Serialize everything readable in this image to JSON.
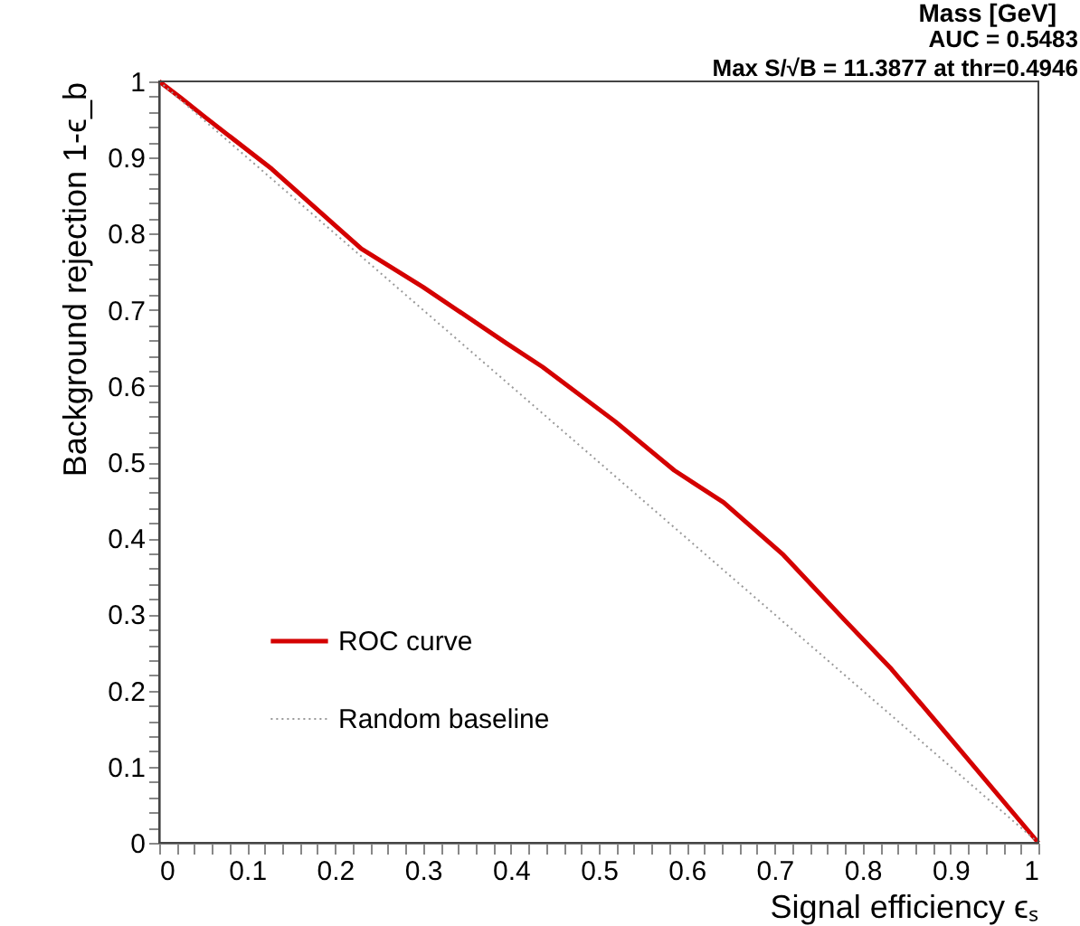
{
  "chart_data": {
    "type": "line",
    "title": "Mass [GeV]",
    "xlabel": "Signal efficiency ϵₛ",
    "ylabel": "Background rejection 1-ϵ_b",
    "annotations": [
      "AUC = 0.5483",
      "Max S/√B = 11.3877 at thr=0.4946"
    ],
    "series": [
      {
        "name": "ROC curve",
        "color": "#d40000",
        "line_style": "solid",
        "x": [
          0,
          0.025,
          0.05,
          0.128,
          0.23,
          0.3,
          0.395,
          0.436,
          0.519,
          0.586,
          0.642,
          0.71,
          0.78,
          0.833,
          0.903,
          1
        ],
        "values": [
          1,
          0.978,
          0.955,
          0.885,
          0.78,
          0.73,
          0.656,
          0.625,
          0.553,
          0.489,
          0.447,
          0.378,
          0.292,
          0.228,
          0.133,
          0
        ]
      },
      {
        "name": "Random baseline",
        "color": "#999999",
        "line_style": "dotted",
        "x": [
          0,
          1
        ],
        "values": [
          1,
          0
        ]
      }
    ],
    "xlim": [
      0,
      1
    ],
    "ylim": [
      0,
      1
    ],
    "xticks": [
      0,
      {
        "value": 0.02,
        "label": null
      },
      {
        "value": 0.04,
        "label": null
      },
      {
        "value": 0.06,
        "label": null
      },
      {
        "value": 0.08,
        "label": null
      },
      0.1,
      {
        "value": 0.12,
        "label": null
      },
      {
        "value": 0.14,
        "label": null
      },
      {
        "value": 0.16,
        "label": null
      },
      {
        "value": 0.18,
        "label": null
      },
      0.2,
      {
        "value": 0.22,
        "label": null
      },
      {
        "value": 0.24,
        "label": null
      },
      {
        "value": 0.26,
        "label": null
      },
      {
        "value": 0.28,
        "label": null
      },
      0.3,
      {
        "value": 0.32,
        "label": null
      },
      {
        "value": 0.34,
        "label": null
      },
      {
        "value": 0.36,
        "label": null
      },
      {
        "value": 0.38,
        "label": null
      },
      0.4,
      {
        "value": 0.42,
        "label": null
      },
      {
        "value": 0.44,
        "label": null
      },
      {
        "value": 0.46,
        "label": null
      },
      {
        "value": 0.48,
        "label": null
      },
      0.5,
      {
        "value": 0.52,
        "label": null
      },
      {
        "value": 0.54,
        "label": null
      },
      {
        "value": 0.56,
        "label": null
      },
      {
        "value": 0.58,
        "label": null
      },
      0.6,
      {
        "value": 0.62,
        "label": null
      },
      {
        "value": 0.64,
        "label": null
      },
      {
        "value": 0.66,
        "label": null
      },
      {
        "value": 0.68,
        "label": null
      },
      0.7,
      {
        "value": 0.72,
        "label": null
      },
      {
        "value": 0.74,
        "label": null
      },
      {
        "value": 0.76,
        "label": null
      },
      {
        "value": 0.78,
        "label": null
      },
      0.8,
      {
        "value": 0.82,
        "label": null
      },
      {
        "value": 0.84,
        "label": null
      },
      {
        "value": 0.86,
        "label": null
      },
      {
        "value": 0.88,
        "label": null
      },
      0.9,
      {
        "value": 0.92,
        "label": null
      },
      {
        "value": 0.94,
        "label": null
      },
      {
        "value": 0.96,
        "label": null
      },
      {
        "value": 0.98,
        "label": null
      },
      1
    ],
    "yticks": [
      0,
      {
        "value": 0.02,
        "label": null
      },
      {
        "value": 0.04,
        "label": null
      },
      {
        "value": 0.06,
        "label": null
      },
      {
        "value": 0.08,
        "label": null
      },
      0.1,
      {
        "value": 0.12,
        "label": null
      },
      {
        "value": 0.14,
        "label": null
      },
      {
        "value": 0.16,
        "label": null
      },
      {
        "value": 0.18,
        "label": null
      },
      0.2,
      {
        "value": 0.22,
        "label": null
      },
      {
        "value": 0.24,
        "label": null
      },
      {
        "value": 0.26,
        "label": null
      },
      {
        "value": 0.28,
        "label": null
      },
      0.3,
      {
        "value": 0.32,
        "label": null
      },
      {
        "value": 0.34,
        "label": null
      },
      {
        "value": 0.36,
        "label": null
      },
      {
        "value": 0.38,
        "label": null
      },
      0.4,
      {
        "value": 0.42,
        "label": null
      },
      {
        "value": 0.44,
        "label": null
      },
      {
        "value": 0.46,
        "label": null
      },
      {
        "value": 0.48,
        "label": null
      },
      0.5,
      {
        "value": 0.52,
        "label": null
      },
      {
        "value": 0.54,
        "label": null
      },
      {
        "value": 0.56,
        "label": null
      },
      {
        "value": 0.58,
        "label": null
      },
      0.6,
      {
        "value": 0.62,
        "label": null
      },
      {
        "value": 0.64,
        "label": null
      },
      {
        "value": 0.66,
        "label": null
      },
      {
        "value": 0.68,
        "label": null
      },
      0.7,
      {
        "value": 0.72,
        "label": null
      },
      {
        "value": 0.74,
        "label": null
      },
      {
        "value": 0.76,
        "label": null
      },
      {
        "value": 0.78,
        "label": null
      },
      0.8,
      {
        "value": 0.82,
        "label": null
      },
      {
        "value": 0.84,
        "label": null
      },
      {
        "value": 0.86,
        "label": null
      },
      {
        "value": 0.88,
        "label": null
      },
      0.9,
      {
        "value": 0.92,
        "label": null
      },
      {
        "value": 0.94,
        "label": null
      },
      {
        "value": 0.96,
        "label": null
      },
      {
        "value": 0.98,
        "label": null
      },
      1
    ],
    "grid": false,
    "legend": "bottom left",
    "marker": "none"
  }
}
